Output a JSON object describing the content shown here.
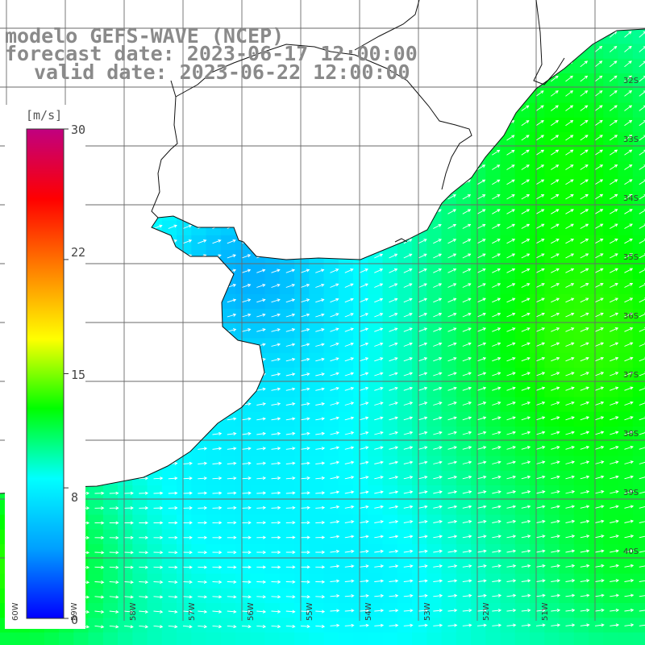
{
  "title": {
    "model": "modelo GEFS-WAVE (NCEP)",
    "forecast": "forecast date: 2023-06-17 12:00:00",
    "valid": "valid date: 2023-06-22 12:00:00"
  },
  "colorbar": {
    "unit": "[m/s]",
    "min": 0,
    "max": 30,
    "ticks": [
      "30",
      "22",
      "15",
      "8",
      "0"
    ],
    "tick_values": [
      30,
      22,
      15,
      8,
      0
    ],
    "stops": [
      "#0000ff",
      "#00a0ff",
      "#00ffff",
      "#00ff00",
      "#ffff00",
      "#ff8000",
      "#ff0000",
      "#c00080"
    ]
  },
  "lat_labels": [
    "32S",
    "33S",
    "34S",
    "35S",
    "36S",
    "37S",
    "38S",
    "39S",
    "40S"
  ],
  "lon_labels": [
    "60W",
    "59W",
    "58W",
    "57W",
    "56W",
    "55W",
    "54W",
    "53W",
    "52W",
    "51W"
  ],
  "colors": {
    "land": "#ffffff",
    "coast": "#111111",
    "grid": "#6a6a6a",
    "arrows": "#ffffff",
    "title_text": "#8a8a8a"
  }
}
